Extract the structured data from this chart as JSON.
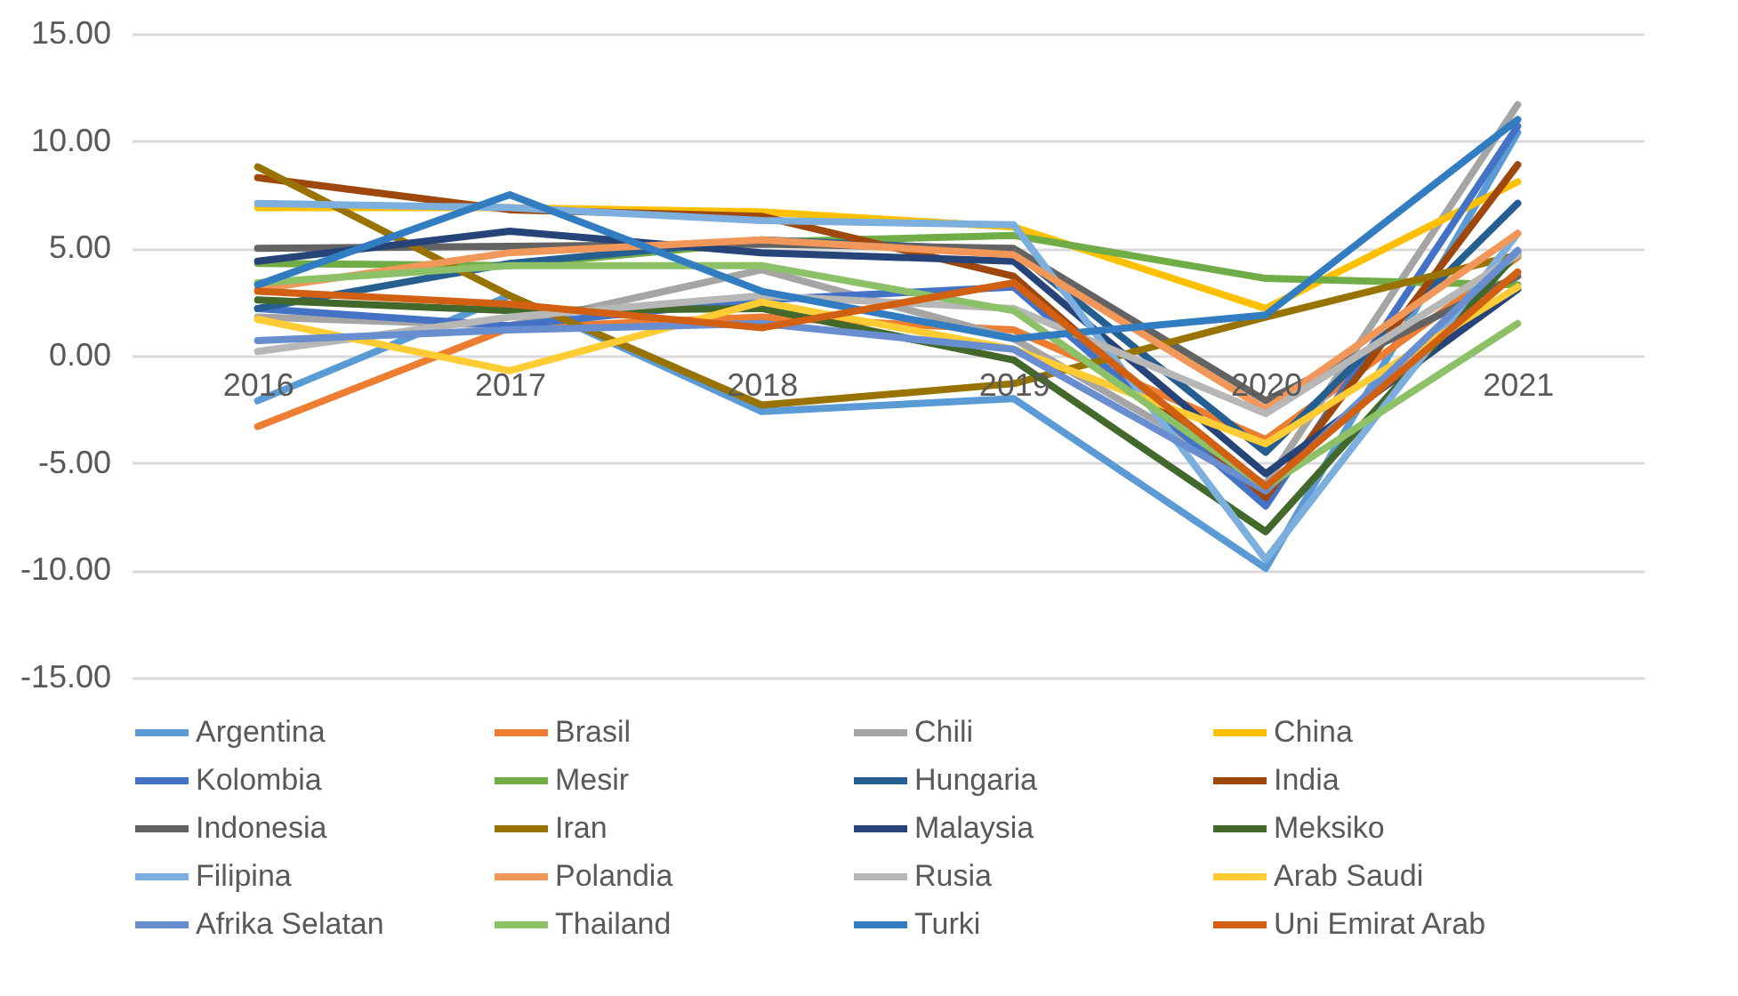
{
  "chart_data": {
    "type": "line",
    "categories": [
      "2016",
      "2017",
      "2018",
      "2019",
      "2020",
      "2021"
    ],
    "ylim": [
      -15,
      15
    ],
    "yticks": [
      {
        "value": -15,
        "label": "-15.00"
      },
      {
        "value": -10,
        "label": "-10.00"
      },
      {
        "value": -5,
        "label": "-5.00"
      },
      {
        "value": 0,
        "label": "0.00"
      },
      {
        "value": 5,
        "label": "5.00"
      },
      {
        "value": 10,
        "label": "10.00"
      },
      {
        "value": 15,
        "label": "15.00"
      }
    ],
    "grid": "y",
    "legend": "bottom",
    "marker": "none",
    "line_style": "solid",
    "series": [
      {
        "name": "Argentina",
        "color": "#5b9bd5",
        "values": [
          -2.1,
          2.8,
          -2.6,
          -2.0,
          -9.9,
          10.4
        ]
      },
      {
        "name": "Brasil",
        "color": "#ed7d31",
        "values": [
          -3.3,
          1.3,
          1.8,
          1.2,
          -3.9,
          4.6
        ]
      },
      {
        "name": "Chili",
        "color": "#a5a5a5",
        "values": [
          1.8,
          1.4,
          4.0,
          0.8,
          -6.0,
          11.7
        ]
      },
      {
        "name": "China",
        "color": "#ffc000",
        "values": [
          6.9,
          6.9,
          6.7,
          6.0,
          2.2,
          8.1
        ]
      },
      {
        "name": "Kolombia",
        "color": "#4472c4",
        "values": [
          2.2,
          1.4,
          2.6,
          3.2,
          -7.0,
          10.7
        ]
      },
      {
        "name": "Mesir",
        "color": "#70ad47",
        "values": [
          4.3,
          4.2,
          5.3,
          5.6,
          3.6,
          3.3
        ]
      },
      {
        "name": "Hungaria",
        "color": "#255e91",
        "values": [
          2.2,
          4.3,
          5.4,
          4.9,
          -4.5,
          7.1
        ]
      },
      {
        "name": "India",
        "color": "#9e480e",
        "values": [
          8.3,
          6.8,
          6.5,
          3.7,
          -6.6,
          8.9
        ]
      },
      {
        "name": "Indonesia",
        "color": "#636363",
        "values": [
          5.0,
          5.1,
          5.2,
          5.0,
          -2.1,
          3.7
        ]
      },
      {
        "name": "Iran",
        "color": "#997300",
        "values": [
          8.8,
          2.8,
          -2.3,
          -1.3,
          1.8,
          4.7
        ]
      },
      {
        "name": "Malaysia",
        "color": "#264478",
        "values": [
          4.4,
          5.8,
          4.8,
          4.4,
          -5.5,
          3.1
        ]
      },
      {
        "name": "Meksiko",
        "color": "#43682b",
        "values": [
          2.6,
          2.1,
          2.2,
          -0.2,
          -8.2,
          4.8
        ]
      },
      {
        "name": "Filipina",
        "color": "#7cafdd",
        "values": [
          7.1,
          6.9,
          6.3,
          6.1,
          -9.5,
          5.7
        ]
      },
      {
        "name": "Polandia",
        "color": "#f1975a",
        "values": [
          3.1,
          4.8,
          5.4,
          4.7,
          -2.5,
          5.7
        ]
      },
      {
        "name": "Rusia",
        "color": "#b7b7b7",
        "values": [
          0.2,
          1.8,
          2.8,
          2.2,
          -2.7,
          4.7
        ]
      },
      {
        "name": "Arab Saudi",
        "color": "#ffcd33",
        "values": [
          1.7,
          -0.7,
          2.5,
          0.3,
          -4.1,
          3.2
        ]
      },
      {
        "name": "Afrika Selatan",
        "color": "#698ed0",
        "values": [
          0.7,
          1.2,
          1.5,
          0.3,
          -6.3,
          4.9
        ]
      },
      {
        "name": "Thailand",
        "color": "#8cc168",
        "values": [
          3.4,
          4.2,
          4.2,
          2.1,
          -6.1,
          1.5
        ]
      },
      {
        "name": "Turki",
        "color": "#327dc2",
        "values": [
          3.3,
          7.5,
          3.0,
          0.8,
          1.9,
          11.0
        ]
      },
      {
        "name": "Uni Emirat Arab",
        "color": "#d26012",
        "values": [
          3.0,
          2.4,
          1.3,
          3.4,
          -6.1,
          3.9
        ]
      }
    ]
  }
}
